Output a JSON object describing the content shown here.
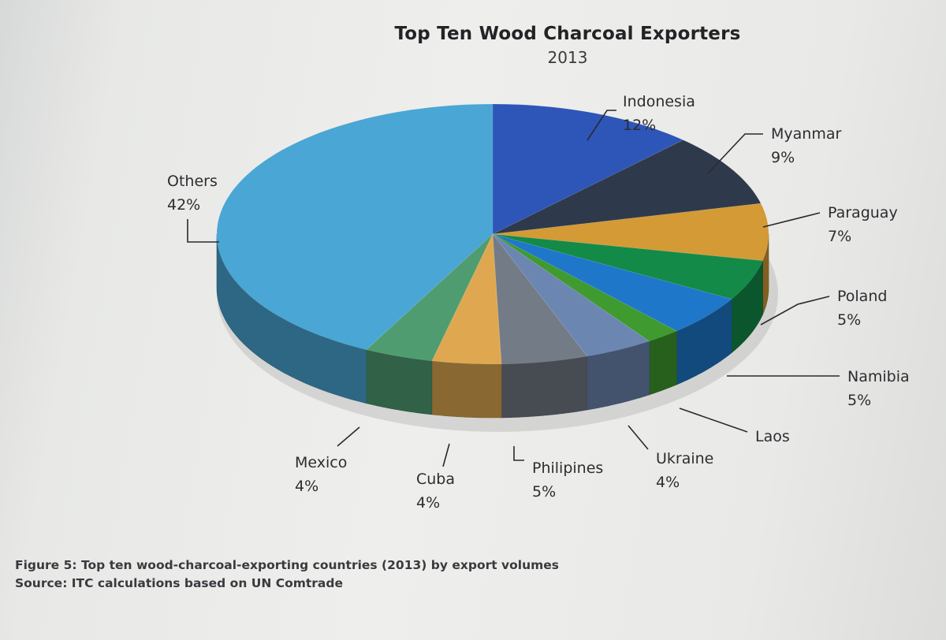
{
  "chart_data": {
    "type": "pie",
    "title": "Top Ten Wood Charcoal Exporters",
    "subtitle": "2013",
    "slices": [
      {
        "label": "Indonesia",
        "value": 12,
        "value_label": "12%",
        "color": "#2e55b8"
      },
      {
        "label": "Myanmar",
        "value": 9,
        "value_label": "9%",
        "color": "#2e3a4c"
      },
      {
        "label": "Paraguay",
        "value": 7,
        "value_label": "7%",
        "color": "#d39a35"
      },
      {
        "label": "Poland",
        "value": 5,
        "value_label": "5%",
        "color": "#138a48"
      },
      {
        "label": "Namibia",
        "value": 5,
        "value_label": "5%",
        "color": "#1f77c9"
      },
      {
        "label": "Laos",
        "value": 2,
        "value_label": "",
        "color": "#3f9a2f"
      },
      {
        "label": "Ukraine",
        "value": 4,
        "value_label": "4%",
        "color": "#6c86b2"
      },
      {
        "label": "Philipines",
        "value": 5,
        "value_label": "5%",
        "color": "#727b86"
      },
      {
        "label": "Cuba",
        "value": 4,
        "value_label": "4%",
        "color": "#dfa850"
      },
      {
        "label": "Mexico",
        "value": 4,
        "value_label": "4%",
        "color": "#4f9c71"
      },
      {
        "label": "Others",
        "value": 42,
        "value_label": "42%",
        "color": "#4aa6d4"
      }
    ],
    "style": "3d"
  },
  "caption": {
    "figure": "Figure 5: Top ten wood-charcoal-exporting countries (2013) by export volumes",
    "source": "Source: ITC calculations based on UN Comtrade"
  }
}
